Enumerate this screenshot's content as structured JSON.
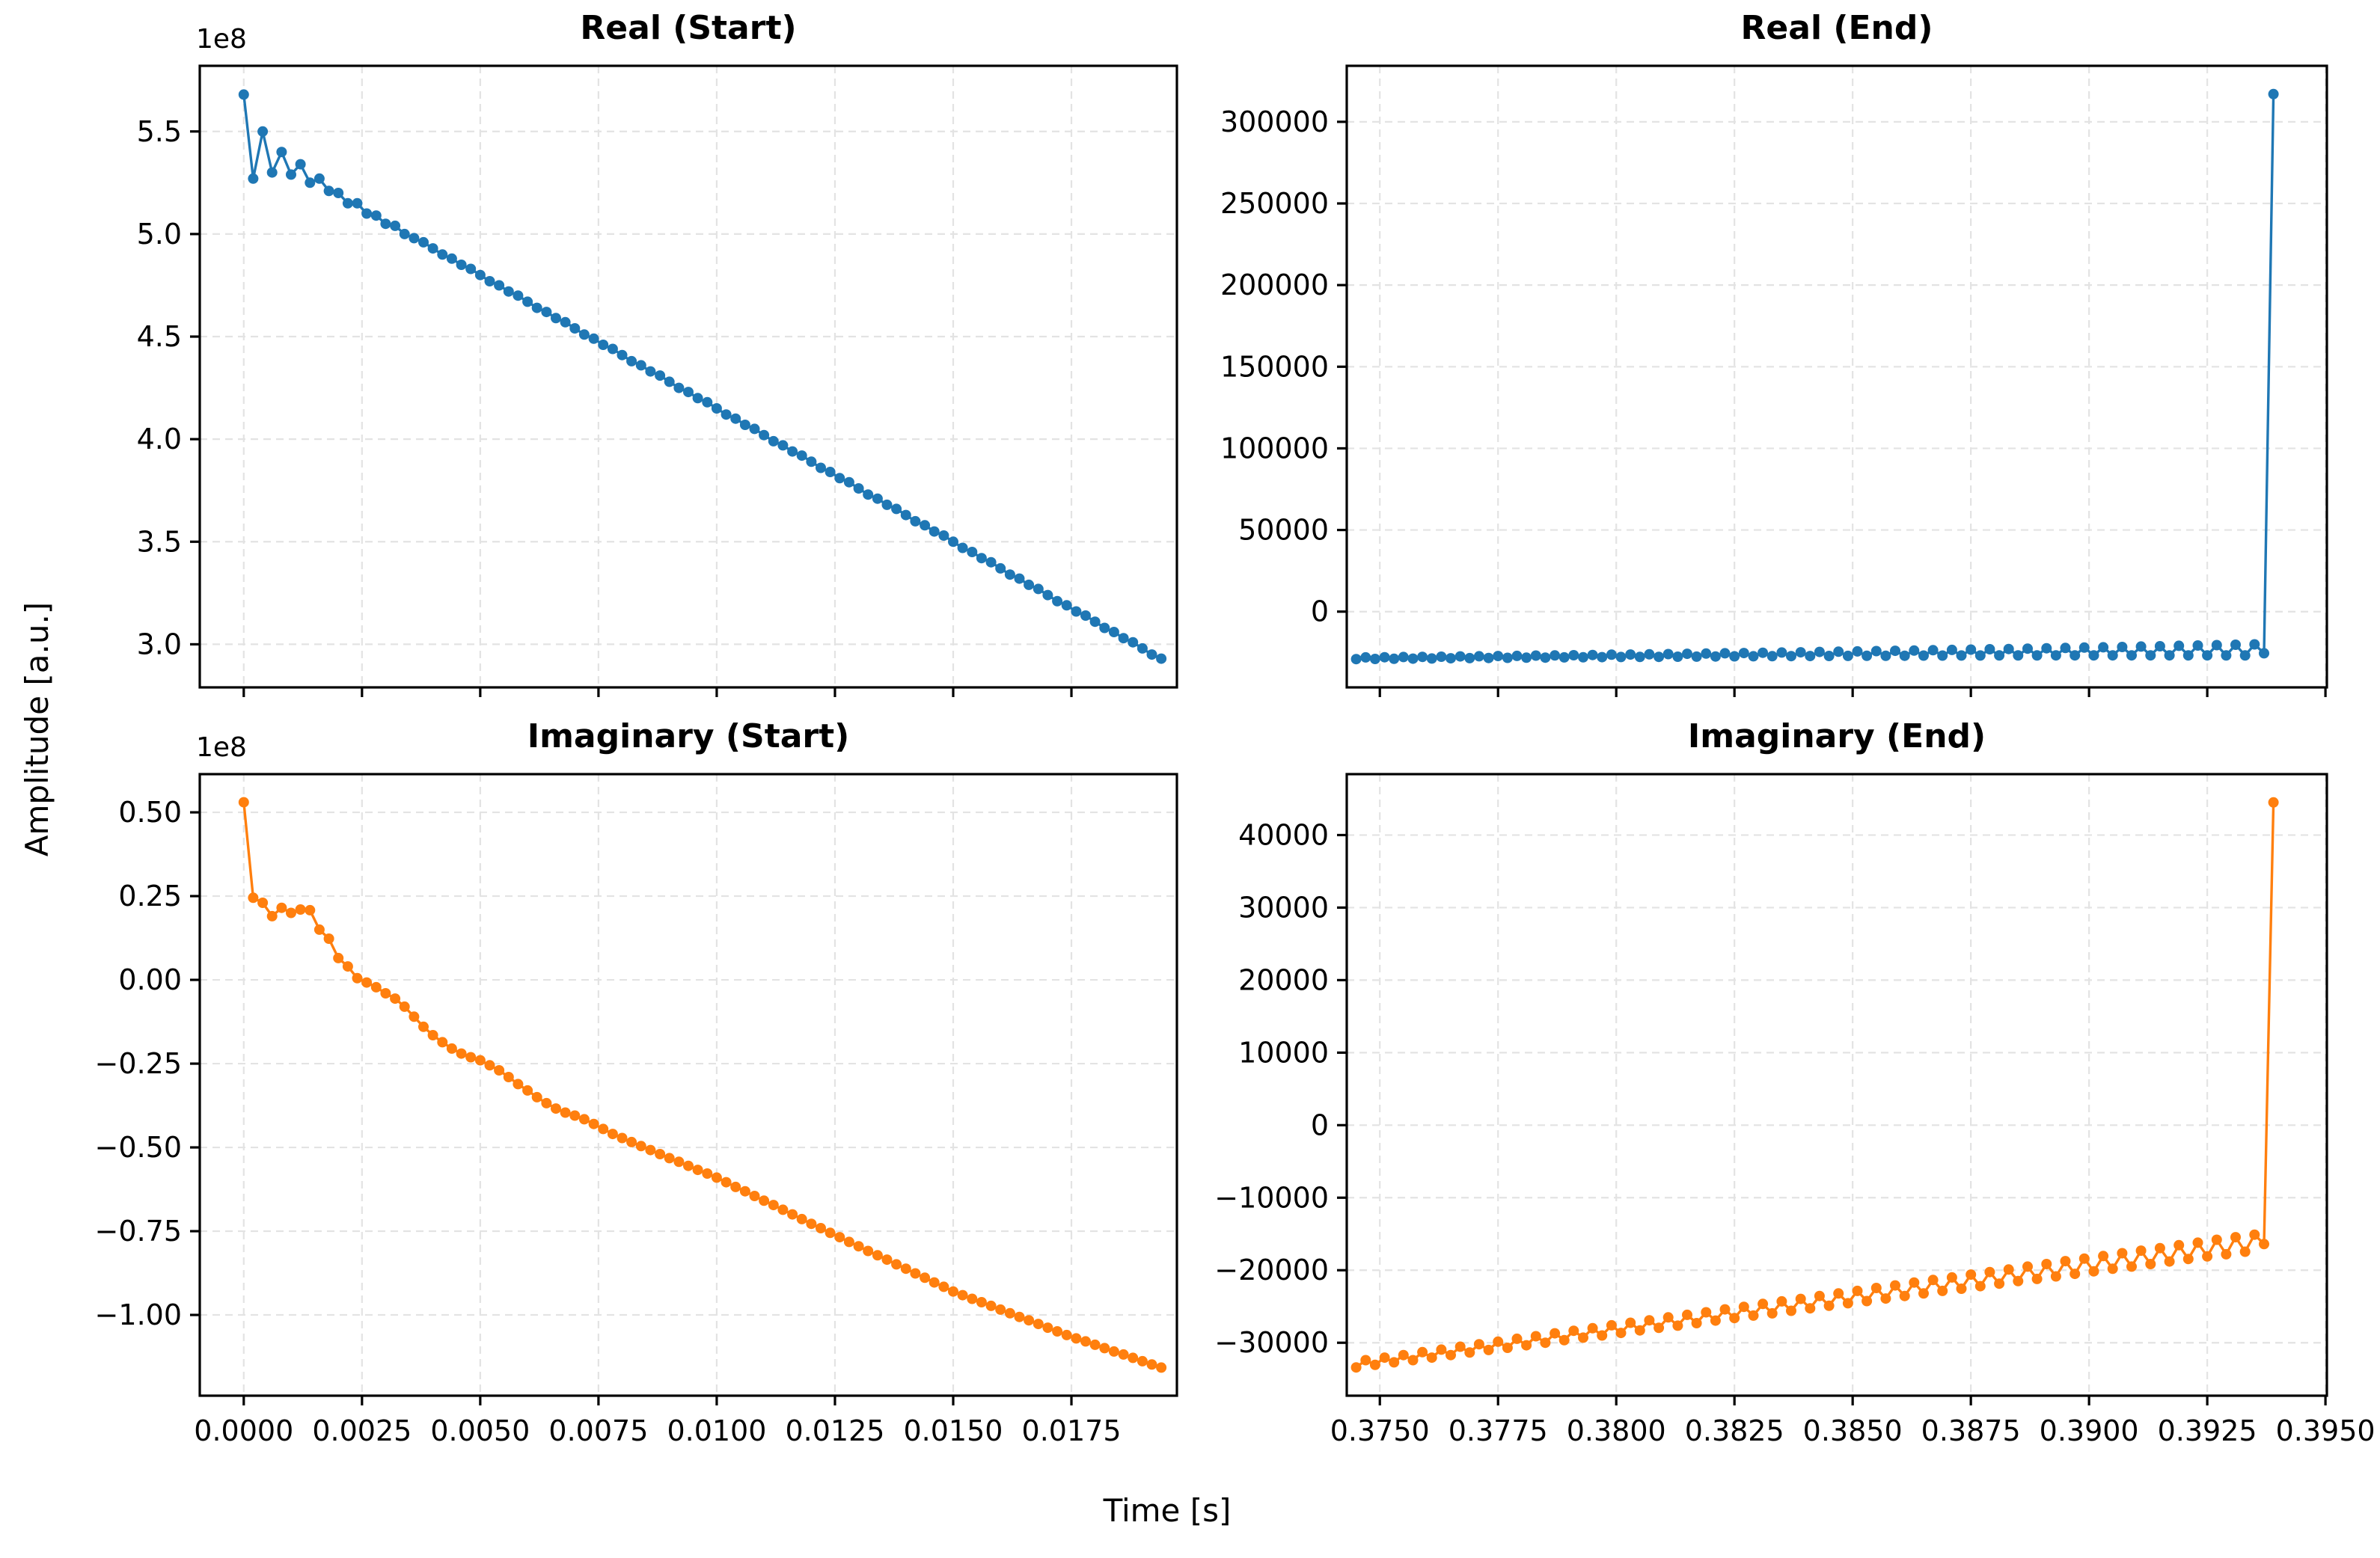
{
  "figure": {
    "xlabel": "Time [s]",
    "ylabel": "Amplitude [a.u.]",
    "background_color": "#ffffff",
    "grid_color": "#e3e3e3",
    "spine_color": "#000000",
    "real_color": "#1f77b4",
    "imaginary_color": "#ff7f0e"
  },
  "chart_data": [
    {
      "type": "line",
      "title": "Real (Start)",
      "color": "#1f77b4",
      "marker": "circle",
      "offset_text": "1e8",
      "y_scale": 100000000,
      "x_start": 0.0,
      "x_step": 0.0002,
      "n_points": 98,
      "xlim": [
        -0.00093,
        0.01973
      ],
      "ylim": [
        2.79,
        5.82
      ],
      "xticks": [
        0.0,
        0.0025,
        0.005,
        0.0075,
        0.01,
        0.0125,
        0.015,
        0.0175
      ],
      "xtick_labels": [
        "0.0000",
        "0.0025",
        "0.0050",
        "0.0075",
        "0.0100",
        "0.0125",
        "0.0150",
        "0.0175"
      ],
      "show_xtick_labels": false,
      "yticks": [
        3.0,
        3.5,
        4.0,
        4.5,
        5.0,
        5.5
      ],
      "ytick_labels": [
        "3.0",
        "3.5",
        "4.0",
        "4.5",
        "5.0",
        "5.5"
      ],
      "grid": true,
      "y": [
        5.68,
        5.27,
        5.5,
        5.3,
        5.4,
        5.29,
        5.34,
        5.25,
        5.27,
        5.21,
        5.2,
        5.15,
        5.15,
        5.1,
        5.09,
        5.05,
        5.04,
        5.0,
        4.98,
        4.96,
        4.93,
        4.9,
        4.88,
        4.85,
        4.83,
        4.8,
        4.77,
        4.75,
        4.72,
        4.7,
        4.67,
        4.64,
        4.62,
        4.59,
        4.57,
        4.54,
        4.51,
        4.49,
        4.46,
        4.44,
        4.41,
        4.38,
        4.36,
        4.33,
        4.31,
        4.28,
        4.25,
        4.23,
        4.2,
        4.18,
        4.15,
        4.12,
        4.1,
        4.07,
        4.05,
        4.02,
        3.99,
        3.97,
        3.94,
        3.92,
        3.89,
        3.86,
        3.84,
        3.81,
        3.79,
        3.76,
        3.73,
        3.71,
        3.68,
        3.66,
        3.63,
        3.6,
        3.58,
        3.55,
        3.53,
        3.5,
        3.47,
        3.45,
        3.42,
        3.4,
        3.37,
        3.34,
        3.32,
        3.29,
        3.27,
        3.24,
        3.21,
        3.19,
        3.16,
        3.14,
        3.11,
        3.08,
        3.06,
        3.03,
        3.01,
        2.98,
        2.95,
        2.93
      ]
    },
    {
      "type": "line",
      "title": "Real (End)",
      "color": "#1f77b4",
      "marker": "circle",
      "offset_text": null,
      "y_scale": 1,
      "x_start": 0.3745,
      "x_step": 0.0002,
      "n_points": 98,
      "xlim": [
        0.3743,
        0.39503
      ],
      "ylim": [
        -46400,
        334300
      ],
      "xticks": [
        0.375,
        0.3775,
        0.38,
        0.3825,
        0.385,
        0.3875,
        0.39,
        0.3925,
        0.395
      ],
      "xtick_labels": [
        "0.3750",
        "0.3775",
        "0.3800",
        "0.3825",
        "0.3850",
        "0.3875",
        "0.3900",
        "0.3925",
        "0.3950"
      ],
      "show_xtick_labels": false,
      "yticks": [
        0,
        50000,
        100000,
        150000,
        200000,
        250000,
        300000
      ],
      "ytick_labels": [
        "0",
        "50000",
        "100000",
        "150000",
        "200000",
        "250000",
        "300000"
      ],
      "grid": true,
      "y": [
        -29100,
        -28050,
        -29000,
        -27950,
        -28900,
        -27800,
        -28800,
        -27700,
        -28700,
        -27600,
        -28600,
        -27450,
        -28500,
        -27350,
        -28400,
        -27200,
        -28300,
        -27100,
        -28200,
        -26950,
        -28150,
        -26850,
        -28050,
        -26700,
        -28000,
        -26550,
        -27900,
        -26400,
        -27800,
        -26300,
        -27750,
        -26150,
        -27700,
        -26000,
        -27600,
        -25850,
        -27550,
        -25700,
        -27500,
        -25500,
        -27400,
        -25350,
        -27350,
        -25200,
        -27300,
        -25050,
        -27250,
        -24900,
        -27200,
        -24700,
        -27150,
        -24550,
        -27100,
        -24350,
        -27050,
        -24200,
        -27050,
        -24000,
        -27000,
        -23850,
        -26950,
        -23650,
        -26950,
        -23450,
        -26900,
        -23250,
        -26900,
        -23050,
        -26850,
        -22900,
        -26850,
        -22650,
        -26850,
        -22450,
        -26800,
        -22250,
        -26800,
        -22050,
        -26800,
        -21850,
        -26800,
        -21650,
        -26800,
        -21400,
        -26800,
        -21200,
        -26800,
        -20950,
        -26800,
        -20750,
        -26800,
        -20500,
        -26850,
        -20300,
        -26850,
        -20050,
        -25500,
        317000
      ]
    },
    {
      "type": "line",
      "title": "Imaginary (Start)",
      "color": "#ff7f0e",
      "marker": "circle",
      "offset_text": "1e8",
      "y_scale": 100000000,
      "x_start": 0.0,
      "x_step": 0.0002,
      "n_points": 98,
      "xlim": [
        -0.00093,
        0.01973
      ],
      "ylim": [
        -1.241,
        0.614
      ],
      "xticks": [
        0.0,
        0.0025,
        0.005,
        0.0075,
        0.01,
        0.0125,
        0.015,
        0.0175
      ],
      "xtick_labels": [
        "0.0000",
        "0.0025",
        "0.0050",
        "0.0075",
        "0.0100",
        "0.0125",
        "0.0150",
        "0.0175"
      ],
      "show_xtick_labels": true,
      "yticks": [
        -1.0,
        -0.75,
        -0.5,
        -0.25,
        0.0,
        0.25,
        0.5
      ],
      "ytick_labels": [
        "−1.00",
        "−0.75",
        "−0.50",
        "−0.25",
        "0.00",
        "0.25",
        "0.50"
      ],
      "grid": true,
      "y": [
        0.53,
        0.245,
        0.23,
        0.19,
        0.215,
        0.2,
        0.21,
        0.208,
        0.15,
        0.123,
        0.065,
        0.04,
        0.005,
        -0.008,
        -0.022,
        -0.04,
        -0.056,
        -0.08,
        -0.11,
        -0.14,
        -0.165,
        -0.186,
        -0.205,
        -0.22,
        -0.231,
        -0.24,
        -0.255,
        -0.27,
        -0.29,
        -0.311,
        -0.33,
        -0.35,
        -0.368,
        -0.384,
        -0.396,
        -0.405,
        -0.416,
        -0.43,
        -0.445,
        -0.46,
        -0.472,
        -0.484,
        -0.496,
        -0.508,
        -0.52,
        -0.532,
        -0.543,
        -0.555,
        -0.567,
        -0.578,
        -0.59,
        -0.604,
        -0.618,
        -0.631,
        -0.645,
        -0.659,
        -0.672,
        -0.686,
        -0.7,
        -0.714,
        -0.728,
        -0.741,
        -0.755,
        -0.768,
        -0.782,
        -0.795,
        -0.809,
        -0.822,
        -0.835,
        -0.849,
        -0.862,
        -0.876,
        -0.889,
        -0.903,
        -0.916,
        -0.93,
        -0.941,
        -0.952,
        -0.962,
        -0.973,
        -0.984,
        -0.995,
        -1.006,
        -1.016,
        -1.027,
        -1.038,
        -1.049,
        -1.06,
        -1.07,
        -1.079,
        -1.089,
        -1.099,
        -1.109,
        -1.118,
        -1.128,
        -1.138,
        -1.148,
        -1.157
      ]
    },
    {
      "type": "line",
      "title": "Imaginary (End)",
      "color": "#ff7f0e",
      "marker": "circle",
      "offset_text": null,
      "y_scale": 1,
      "x_start": 0.3745,
      "x_step": 0.0002,
      "n_points": 98,
      "xlim": [
        0.3743,
        0.39503
      ],
      "ylim": [
        -37300,
        48400
      ],
      "xticks": [
        0.375,
        0.3775,
        0.38,
        0.3825,
        0.385,
        0.3875,
        0.39,
        0.3925,
        0.395
      ],
      "xtick_labels": [
        "0.3750",
        "0.3775",
        "0.3800",
        "0.3825",
        "0.3850",
        "0.3875",
        "0.3900",
        "0.3925",
        "0.3950"
      ],
      "show_xtick_labels": true,
      "yticks": [
        -30000,
        -20000,
        -10000,
        0,
        10000,
        20000,
        30000,
        40000
      ],
      "ytick_labels": [
        "−30000",
        "−20000",
        "−10000",
        "0",
        "10000",
        "20000",
        "30000",
        "40000"
      ],
      "grid": true,
      "y": [
        -33400,
        -32400,
        -33050,
        -32050,
        -32700,
        -31700,
        -32400,
        -31300,
        -32050,
        -30950,
        -31700,
        -30550,
        -31350,
        -30200,
        -31000,
        -29850,
        -30700,
        -29450,
        -30350,
        -29100,
        -30000,
        -28700,
        -29650,
        -28350,
        -29300,
        -28000,
        -29000,
        -27600,
        -28650,
        -27250,
        -28300,
        -26900,
        -27950,
        -26500,
        -27650,
        -26150,
        -27300,
        -25800,
        -26950,
        -25400,
        -26600,
        -25050,
        -26250,
        -24650,
        -25950,
        -24300,
        -25600,
        -23950,
        -25250,
        -23550,
        -24900,
        -23200,
        -24550,
        -22850,
        -24250,
        -22450,
        -23900,
        -22100,
        -23550,
        -21700,
        -23200,
        -21350,
        -22850,
        -21000,
        -22550,
        -20600,
        -22200,
        -20250,
        -21850,
        -19900,
        -21500,
        -19500,
        -21200,
        -19150,
        -20850,
        -18750,
        -20500,
        -18400,
        -20150,
        -18050,
        -19800,
        -17650,
        -19500,
        -17300,
        -19150,
        -16950,
        -18800,
        -16550,
        -18450,
        -16200,
        -18100,
        -15800,
        -17800,
        -15450,
        -17450,
        -15100,
        -16400,
        44500
      ]
    }
  ]
}
